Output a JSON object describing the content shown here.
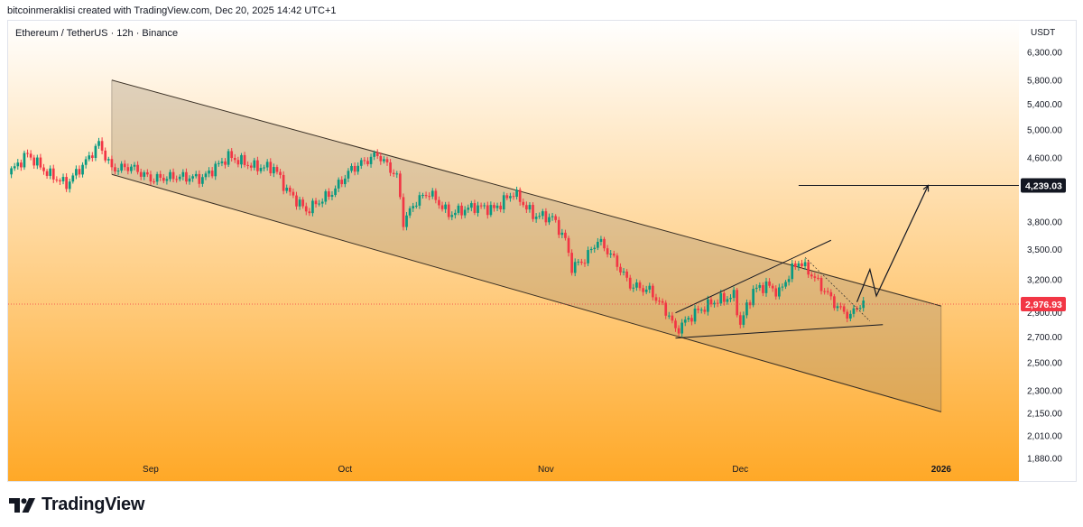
{
  "header": {
    "credit": "bitcoinmeraklisi created with TradingView.com, Dec 20, 2025 14:42 UTC+1",
    "symbol": "Ethereum / TetherUS · 12h · Binance"
  },
  "footer": {
    "brand": "TradingView",
    "logo_icon": "tradingview-logo-icon"
  },
  "colors": {
    "up": "#089981",
    "down": "#f23645",
    "bg_top": "#ffffff",
    "bg_bottom": "#ffa826",
    "channel_fill": "#9d8a6e",
    "last_price": "#f23645",
    "target": "#131722"
  },
  "chart_data": {
    "type": "candlestick",
    "currency": "USDT",
    "scale": "log",
    "ylim": [
      1880,
      6300
    ],
    "xlim": [
      "2025-08-10",
      "2026-01-13"
    ],
    "y_ticks": [
      "6,300.00",
      "5,800.00",
      "5,400.00",
      "5,000.00",
      "4,600.00",
      "3,800.00",
      "3,500.00",
      "3,200.00",
      "2,900.00",
      "2,700.00",
      "2,500.00",
      "2,300.00",
      "2,150.00",
      "2,010.00",
      "1,880.00"
    ],
    "x_ticks": [
      {
        "label": "Sep",
        "date": "2025-09-01"
      },
      {
        "label": "Oct",
        "date": "2025-10-01"
      },
      {
        "label": "Nov",
        "date": "2025-11-01"
      },
      {
        "label": "Dec",
        "date": "2025-12-01"
      },
      {
        "label": "2026",
        "date": "2026-01-01"
      }
    ],
    "last_price": {
      "value": 2976.93,
      "label": "2,976.93"
    },
    "target_price": {
      "value": 4239.03,
      "label": "4,239.03"
    },
    "close_path": [
      [
        "2025-08-10",
        4380
      ],
      [
        "2025-08-13",
        4650
      ],
      [
        "2025-08-16",
        4400
      ],
      [
        "2025-08-19",
        4250
      ],
      [
        "2025-08-22",
        4550
      ],
      [
        "2025-08-24",
        4800
      ],
      [
        "2025-08-26",
        4450
      ],
      [
        "2025-08-29",
        4480
      ],
      [
        "2025-09-01",
        4320
      ],
      [
        "2025-09-05",
        4350
      ],
      [
        "2025-09-09",
        4330
      ],
      [
        "2025-09-13",
        4620
      ],
      [
        "2025-09-17",
        4480
      ],
      [
        "2025-09-20",
        4470
      ],
      [
        "2025-09-22",
        4180
      ],
      [
        "2025-09-25",
        3930
      ],
      [
        "2025-09-29",
        4150
      ],
      [
        "2025-10-02",
        4450
      ],
      [
        "2025-10-06",
        4650
      ],
      [
        "2025-10-09",
        4350
      ],
      [
        "2025-10-10",
        3800
      ],
      [
        "2025-10-12",
        4050
      ],
      [
        "2025-10-14",
        4150
      ],
      [
        "2025-10-17",
        3890
      ],
      [
        "2025-10-21",
        3980
      ],
      [
        "2025-10-24",
        3950
      ],
      [
        "2025-10-27",
        4150
      ],
      [
        "2025-10-30",
        3880
      ],
      [
        "2025-11-02",
        3850
      ],
      [
        "2025-11-04",
        3600
      ],
      [
        "2025-11-05",
        3320
      ],
      [
        "2025-11-07",
        3400
      ],
      [
        "2025-11-09",
        3600
      ],
      [
        "2025-11-11",
        3450
      ],
      [
        "2025-11-14",
        3150
      ],
      [
        "2025-11-17",
        3100
      ],
      [
        "2025-11-20",
        2880
      ],
      [
        "2025-11-21",
        2750
      ],
      [
        "2025-11-24",
        2900
      ],
      [
        "2025-11-27",
        3000
      ],
      [
        "2025-11-30",
        3050
      ],
      [
        "2025-12-01",
        2800
      ],
      [
        "2025-12-03",
        3100
      ],
      [
        "2025-12-05",
        3150
      ],
      [
        "2025-12-07",
        3080
      ],
      [
        "2025-12-09",
        3300
      ],
      [
        "2025-12-10",
        3380
      ],
      [
        "2025-12-12",
        3250
      ],
      [
        "2025-12-14",
        3100
      ],
      [
        "2025-12-16",
        2950
      ],
      [
        "2025-12-18",
        2870
      ],
      [
        "2025-12-19",
        2960
      ],
      [
        "2025-12-20",
        2976.93
      ]
    ],
    "annotations": {
      "channel": {
        "upper": [
          [
            "2025-08-26",
            5800
          ],
          [
            "2026-01-01",
            2960
          ]
        ],
        "lower": [
          [
            "2025-08-26",
            4380
          ],
          [
            "2026-01-01",
            2160
          ]
        ]
      },
      "wedge": {
        "upper": [
          [
            "2025-11-21",
            2900
          ],
          [
            "2025-12-15",
            3600
          ]
        ],
        "lower": [
          [
            "2025-11-21",
            2690
          ],
          [
            "2025-12-23",
            2800
          ]
        ]
      },
      "thin_guide": [
        [
          "2025-12-11",
          3420
        ],
        [
          "2025-12-21",
          2830
        ]
      ],
      "projection": [
        [
          "2025-12-19",
          2995
        ],
        [
          "2025-12-21",
          3300
        ],
        [
          "2025-12-22",
          3050
        ],
        [
          "2025-12-30",
          4239.03
        ]
      ],
      "target_line": {
        "from": "2025-12-10",
        "to": "2026-01-01",
        "value": 4239.03
      }
    }
  }
}
